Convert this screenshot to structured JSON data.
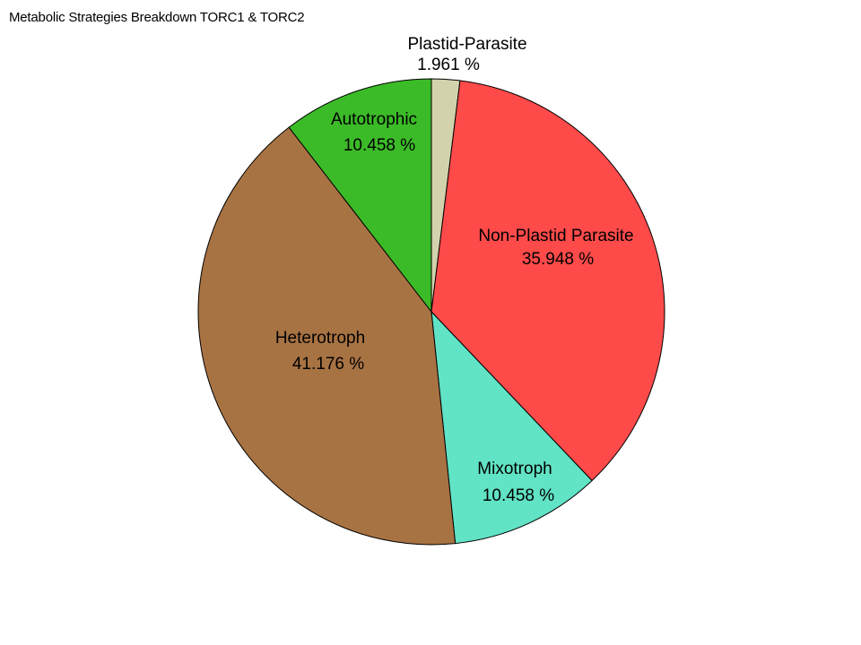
{
  "chart_data": {
    "type": "pie",
    "title": "Metabolic Strategies Breakdown TORC1 & TORC2",
    "start_angle_deg": 0,
    "direction": "clockwise",
    "slices": [
      {
        "label": "Plastid-Parasite",
        "value": 1.961,
        "value_label": "1.961 %",
        "color": "#D2D3AD"
      },
      {
        "label": "Non-Plastid Parasite",
        "value": 35.948,
        "value_label": "35.948 %",
        "color": "#FF4A4A"
      },
      {
        "label": "Mixotroph",
        "value": 10.458,
        "value_label": "10.458 %",
        "color": "#61E3C5"
      },
      {
        "label": "Heterotroph",
        "value": 41.176,
        "value_label": "41.176 %",
        "color": "#A87343"
      },
      {
        "label": "Autotrophic",
        "value": 10.458,
        "value_label": "10.458 %",
        "color": "#3CBB28"
      }
    ],
    "edge_color": "#000000",
    "legend": "none"
  }
}
